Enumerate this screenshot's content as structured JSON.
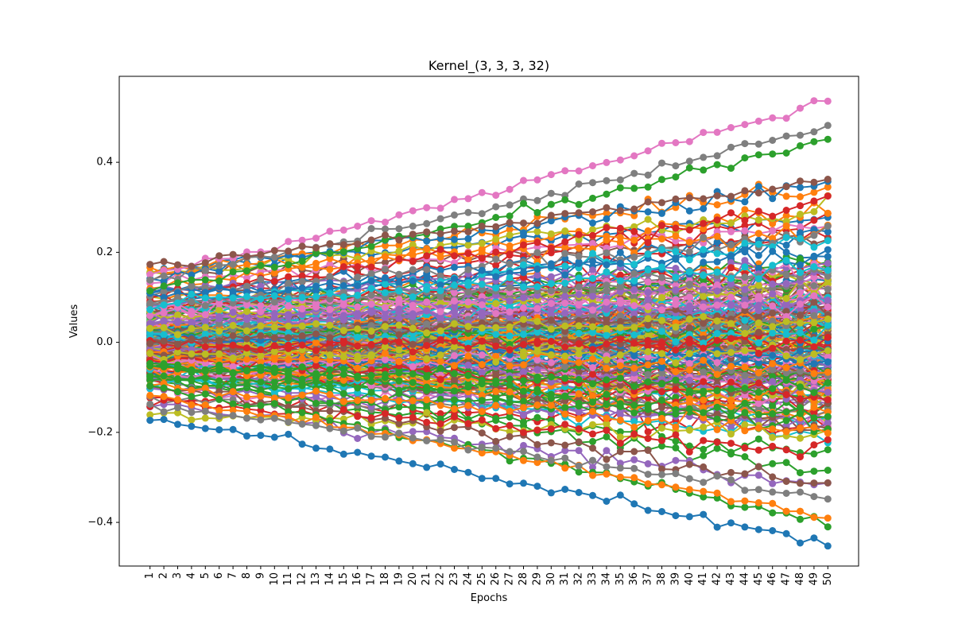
{
  "chart_data": {
    "type": "line",
    "title": "Kernel_(3, 3, 3, 32)",
    "xlabel": "Epochs",
    "ylabel": "Values",
    "x": [
      1,
      2,
      3,
      4,
      5,
      6,
      7,
      8,
      9,
      10,
      11,
      12,
      13,
      14,
      15,
      16,
      17,
      18,
      19,
      20,
      21,
      22,
      23,
      24,
      25,
      26,
      27,
      28,
      29,
      30,
      31,
      32,
      33,
      34,
      35,
      36,
      37,
      38,
      39,
      40,
      41,
      42,
      43,
      44,
      45,
      46,
      47,
      48,
      49,
      50
    ],
    "xticks": [
      "1",
      "2",
      "3",
      "4",
      "5",
      "6",
      "7",
      "8",
      "9",
      "10",
      "11",
      "12",
      "13",
      "14",
      "15",
      "16",
      "17",
      "18",
      "19",
      "20",
      "21",
      "22",
      "23",
      "24",
      "25",
      "26",
      "27",
      "28",
      "29",
      "30",
      "31",
      "32",
      "33",
      "34",
      "35",
      "36",
      "37",
      "38",
      "39",
      "40",
      "41",
      "42",
      "43",
      "44",
      "45",
      "46",
      "47",
      "48",
      "49",
      "50"
    ],
    "yticks": [
      {
        "value": -0.4,
        "label": "−0.4"
      },
      {
        "value": -0.2,
        "label": "−0.2"
      },
      {
        "value": 0.0,
        "label": "0.0"
      },
      {
        "value": 0.2,
        "label": "0.2"
      },
      {
        "value": 0.4,
        "label": "0.4"
      }
    ],
    "ylim": [
      -0.497,
      0.591
    ],
    "grid": false,
    "legend": "none",
    "markers": "circle",
    "series_count": 864,
    "colors": [
      "#1f77b4",
      "#ff7f0e",
      "#2ca02c",
      "#d62728",
      "#9467bd",
      "#8c564b",
      "#e377c2",
      "#7f7f7f",
      "#bcbd22",
      "#17becf"
    ],
    "series_extremes": [
      {
        "color": "#e377c2",
        "start": 0.15,
        "end": 0.54
      },
      {
        "color": "#7f7f7f",
        "start": 0.14,
        "end": 0.48
      },
      {
        "color": "#2ca02c",
        "start": 0.12,
        "end": 0.45
      },
      {
        "color": "#8c564b",
        "start": 0.17,
        "end": 0.36
      },
      {
        "color": "#1f77b4",
        "start": -0.17,
        "end": -0.45
      },
      {
        "color": "#2ca02c",
        "start": -0.1,
        "end": -0.405
      },
      {
        "color": "#ff7f0e",
        "start": -0.12,
        "end": -0.39
      },
      {
        "color": "#7f7f7f",
        "start": -0.14,
        "end": -0.35
      }
    ]
  }
}
